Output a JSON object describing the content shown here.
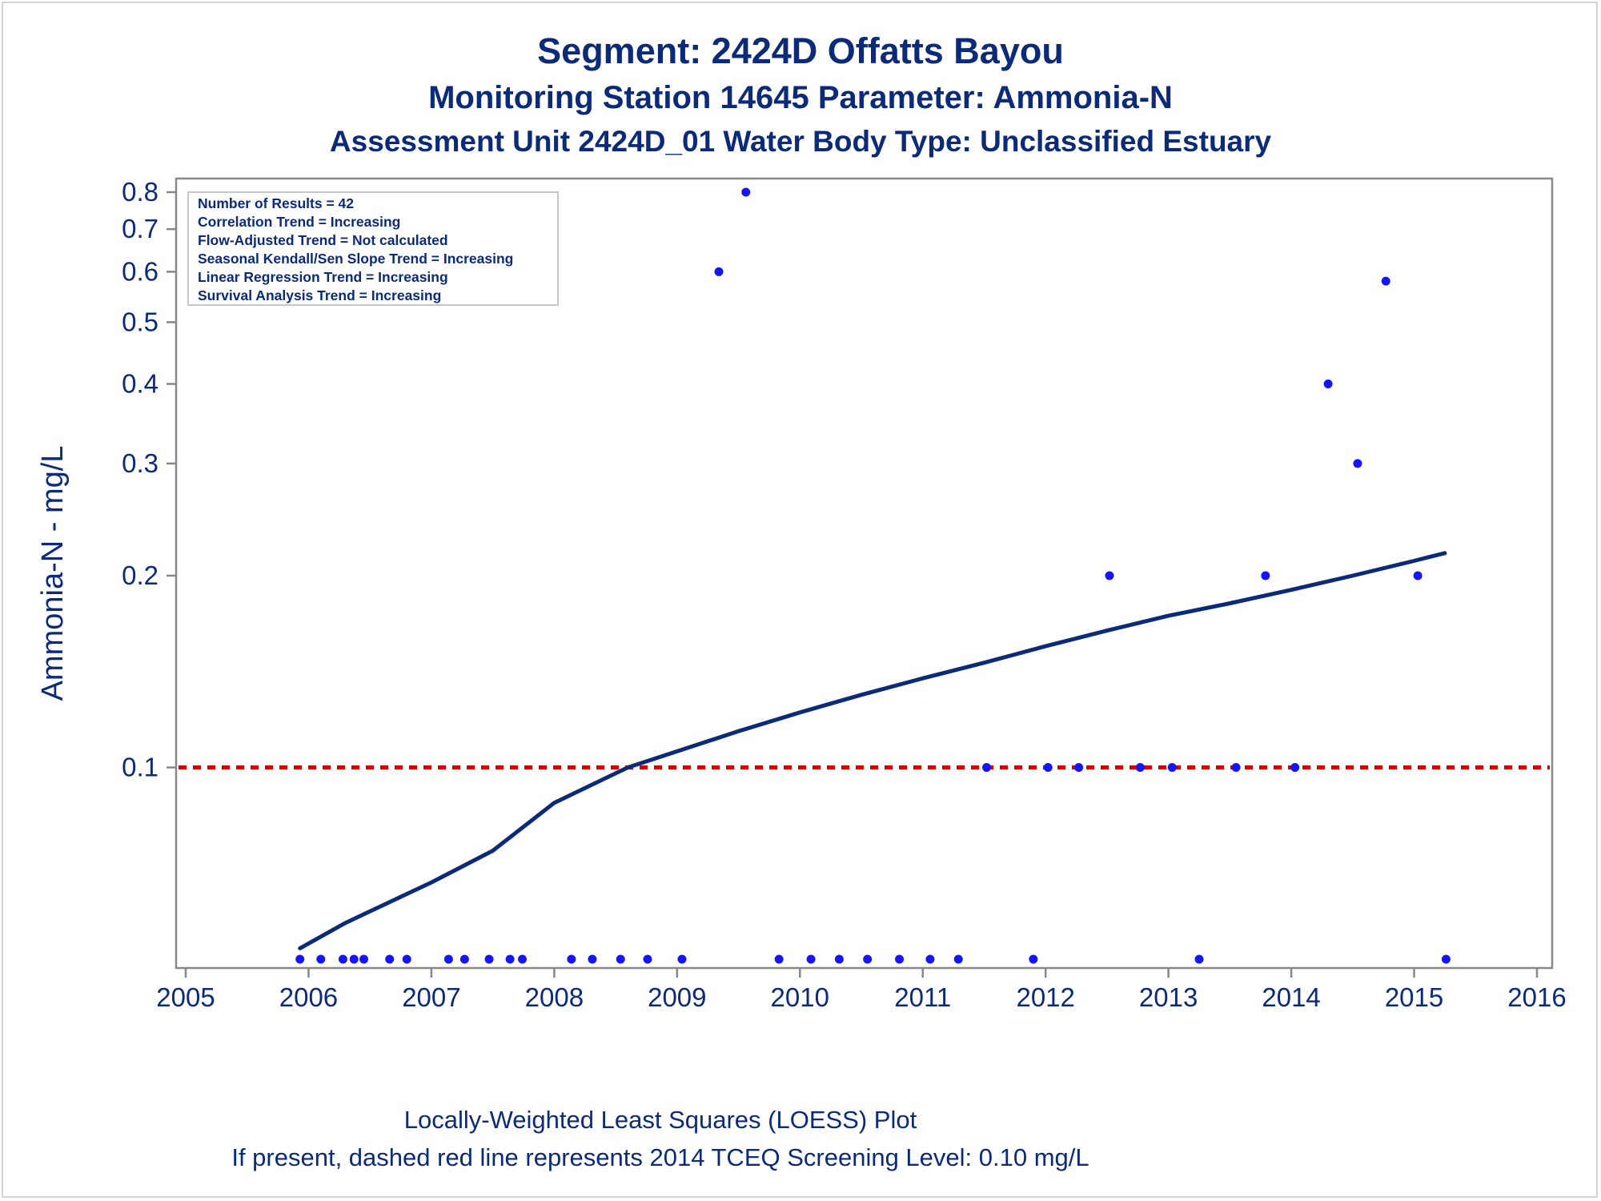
{
  "title": "Segment: 2424D  Offatts Bayou",
  "subtitle": "Monitoring Station 14645 Parameter: Ammonia-N",
  "subtitle2": "Assessment Unit 2424D_01   Water Body Type: Unclassified Estuary",
  "footnote1": "Locally-Weighted Least Squares (LOESS) Plot",
  "footnote2": "If present, dashed red line represents 2014 TCEQ Screening Level: 0.10 mg/L",
  "stats_box": [
    "Number of Results = 42",
    "Correlation Trend = Increasing",
    "Flow-Adjusted Trend = Not calculated",
    "Seasonal Kendall/Sen Slope Trend = Increasing",
    "Linear Regression Trend = Increasing",
    "Survival Analysis Trend = Increasing"
  ],
  "colors": {
    "text": "#0b2a78",
    "points": "#1414ff",
    "loess": "#0b2a78",
    "screening_line": "#d40000",
    "axis": "#888888"
  },
  "chart_data": {
    "type": "scatter",
    "ylabel": "Ammonia-N - mg/L",
    "xlabel": "",
    "y_scale": "log",
    "xlim": [
      2005,
      2016
    ],
    "ylim": [
      0.05,
      0.8
    ],
    "x_ticks": [
      "2005",
      "2006",
      "2007",
      "2008",
      "2009",
      "2010",
      "2011",
      "2012",
      "2013",
      "2014",
      "2015",
      "2016"
    ],
    "y_ticks": [
      "0.1",
      "0.2",
      "0.3",
      "0.4",
      "0.5",
      "0.6",
      "0.7",
      "0.8"
    ],
    "grid": false,
    "points": [
      {
        "x": 2005.93,
        "y": 0.05
      },
      {
        "x": 2006.1,
        "y": 0.05
      },
      {
        "x": 2006.28,
        "y": 0.05
      },
      {
        "x": 2006.37,
        "y": 0.05
      },
      {
        "x": 2006.45,
        "y": 0.05
      },
      {
        "x": 2006.66,
        "y": 0.05
      },
      {
        "x": 2006.8,
        "y": 0.05
      },
      {
        "x": 2007.14,
        "y": 0.05
      },
      {
        "x": 2007.27,
        "y": 0.05
      },
      {
        "x": 2007.47,
        "y": 0.05
      },
      {
        "x": 2007.64,
        "y": 0.05
      },
      {
        "x": 2007.74,
        "y": 0.05
      },
      {
        "x": 2008.14,
        "y": 0.05
      },
      {
        "x": 2008.31,
        "y": 0.05
      },
      {
        "x": 2008.54,
        "y": 0.05
      },
      {
        "x": 2008.76,
        "y": 0.05
      },
      {
        "x": 2009.04,
        "y": 0.05
      },
      {
        "x": 2009.34,
        "y": 0.6
      },
      {
        "x": 2009.56,
        "y": 0.8
      },
      {
        "x": 2009.83,
        "y": 0.05
      },
      {
        "x": 2010.09,
        "y": 0.05
      },
      {
        "x": 2010.32,
        "y": 0.05
      },
      {
        "x": 2010.55,
        "y": 0.05
      },
      {
        "x": 2010.81,
        "y": 0.05
      },
      {
        "x": 2011.06,
        "y": 0.05
      },
      {
        "x": 2011.29,
        "y": 0.05
      },
      {
        "x": 2011.52,
        "y": 0.1
      },
      {
        "x": 2011.9,
        "y": 0.05
      },
      {
        "x": 2012.02,
        "y": 0.1
      },
      {
        "x": 2012.27,
        "y": 0.1
      },
      {
        "x": 2012.52,
        "y": 0.2
      },
      {
        "x": 2012.77,
        "y": 0.1
      },
      {
        "x": 2013.03,
        "y": 0.1
      },
      {
        "x": 2013.25,
        "y": 0.05
      },
      {
        "x": 2013.55,
        "y": 0.1
      },
      {
        "x": 2013.79,
        "y": 0.2
      },
      {
        "x": 2014.03,
        "y": 0.1
      },
      {
        "x": 2014.3,
        "y": 0.4
      },
      {
        "x": 2014.54,
        "y": 0.3
      },
      {
        "x": 2014.77,
        "y": 0.58
      },
      {
        "x": 2015.03,
        "y": 0.2
      },
      {
        "x": 2015.26,
        "y": 0.05
      }
    ],
    "loess": [
      {
        "x": 2005.93,
        "y": 0.052
      },
      {
        "x": 2006.3,
        "y": 0.057
      },
      {
        "x": 2006.7,
        "y": 0.062
      },
      {
        "x": 2007.0,
        "y": 0.066
      },
      {
        "x": 2007.5,
        "y": 0.074
      },
      {
        "x": 2008.0,
        "y": 0.088
      },
      {
        "x": 2008.6,
        "y": 0.1
      },
      {
        "x": 2009.0,
        "y": 0.106
      },
      {
        "x": 2009.5,
        "y": 0.114
      },
      {
        "x": 2010.0,
        "y": 0.122
      },
      {
        "x": 2010.5,
        "y": 0.13
      },
      {
        "x": 2011.0,
        "y": 0.138
      },
      {
        "x": 2011.5,
        "y": 0.146
      },
      {
        "x": 2012.0,
        "y": 0.155
      },
      {
        "x": 2012.5,
        "y": 0.164
      },
      {
        "x": 2013.0,
        "y": 0.173
      },
      {
        "x": 2013.5,
        "y": 0.181
      },
      {
        "x": 2014.0,
        "y": 0.19
      },
      {
        "x": 2014.5,
        "y": 0.2
      },
      {
        "x": 2015.0,
        "y": 0.211
      },
      {
        "x": 2015.25,
        "y": 0.217
      }
    ],
    "reference_line": {
      "y": 0.1,
      "style": "dashed",
      "color": "#d40000"
    }
  }
}
